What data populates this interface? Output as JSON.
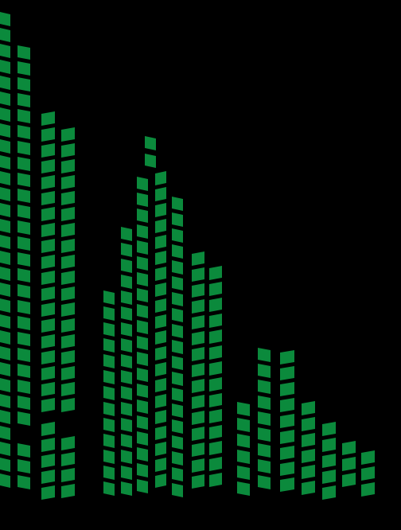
{
  "scene": {
    "background": "#000000",
    "window_color": "#0b8a3c",
    "window_color_dark": "#087a34",
    "subject": "green-tile-skyline-illustration",
    "buildings": [
      {
        "id": "left-tower",
        "columns": 3
      },
      {
        "id": "middle-tower",
        "columns": 4
      },
      {
        "id": "middle-wing",
        "columns": 2
      },
      {
        "id": "right-block",
        "columns": 2
      },
      {
        "id": "right-steps",
        "columns": 4
      }
    ]
  }
}
